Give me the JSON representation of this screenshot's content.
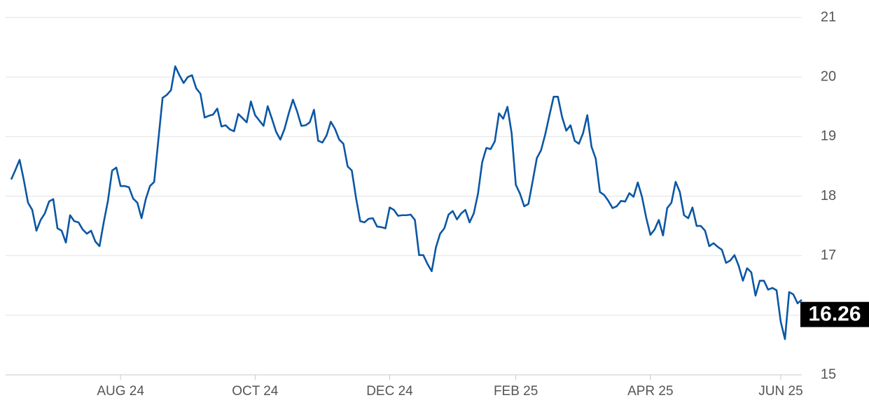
{
  "chart_data": {
    "type": "line",
    "categories": [
      null,
      null,
      null,
      null,
      null,
      null,
      null,
      null,
      null,
      null,
      null,
      null,
      null,
      null,
      null,
      null,
      null,
      null,
      null,
      null,
      null,
      null,
      null,
      null,
      null,
      null,
      "AUG 24",
      null,
      null,
      null,
      null,
      null,
      null,
      null,
      null,
      null,
      null,
      null,
      null,
      null,
      null,
      null,
      null,
      null,
      null,
      null,
      null,
      null,
      null,
      null,
      null,
      null,
      null,
      null,
      null,
      null,
      null,
      null,
      "OCT 24",
      null,
      null,
      null,
      null,
      null,
      null,
      null,
      null,
      null,
      null,
      null,
      null,
      null,
      null,
      null,
      null,
      null,
      null,
      null,
      null,
      null,
      null,
      null,
      null,
      null,
      null,
      null,
      null,
      null,
      null,
      null,
      "DEC 24",
      null,
      null,
      null,
      null,
      null,
      null,
      null,
      null,
      null,
      null,
      null,
      null,
      null,
      null,
      null,
      null,
      null,
      null,
      null,
      null,
      null,
      null,
      null,
      null,
      null,
      null,
      null,
      null,
      null,
      "FEB 25",
      null,
      null,
      null,
      null,
      null,
      null,
      null,
      null,
      null,
      null,
      null,
      null,
      null,
      null,
      null,
      null,
      null,
      null,
      null,
      null,
      null,
      null,
      null,
      null,
      null,
      null,
      null,
      null,
      null,
      null,
      null,
      "APR 25",
      null,
      null,
      null,
      null,
      null,
      null,
      null,
      null,
      null,
      null,
      null,
      null,
      null,
      null,
      null,
      null,
      null,
      null,
      null,
      null,
      null,
      null,
      null,
      null,
      null,
      null,
      null,
      null,
      null,
      null,
      "JUN 25",
      null,
      null,
      null,
      null,
      null
    ],
    "values": [
      18.28,
      18.44,
      18.61,
      18.27,
      17.89,
      17.77,
      17.42,
      17.6,
      17.71,
      17.91,
      17.95,
      17.46,
      17.42,
      17.22,
      17.68,
      17.58,
      17.56,
      17.44,
      17.37,
      17.42,
      17.24,
      17.16,
      17.56,
      17.92,
      18.43,
      18.48,
      18.17,
      18.17,
      18.15,
      17.96,
      17.89,
      17.63,
      17.95,
      18.17,
      18.24,
      18.95,
      19.65,
      19.7,
      19.78,
      20.18,
      20.03,
      19.9,
      20.0,
      20.03,
      19.81,
      19.72,
      19.32,
      19.35,
      19.37,
      19.47,
      19.17,
      19.19,
      19.12,
      19.09,
      19.38,
      19.31,
      19.24,
      19.59,
      19.36,
      19.27,
      19.18,
      19.51,
      19.3,
      19.08,
      18.95,
      19.13,
      19.39,
      19.62,
      19.42,
      19.18,
      19.19,
      19.24,
      19.45,
      18.93,
      18.9,
      19.02,
      19.25,
      19.13,
      18.95,
      18.88,
      18.5,
      18.43,
      17.97,
      17.58,
      17.56,
      17.62,
      17.63,
      17.49,
      17.48,
      17.46,
      17.81,
      17.77,
      17.67,
      17.68,
      17.68,
      17.69,
      17.6,
      17.01,
      17.01,
      16.86,
      16.74,
      17.14,
      17.37,
      17.46,
      17.69,
      17.75,
      17.61,
      17.71,
      17.77,
      17.56,
      17.71,
      18.04,
      18.57,
      18.81,
      18.79,
      18.92,
      19.39,
      19.3,
      19.5,
      19.06,
      18.19,
      18.04,
      17.83,
      17.87,
      18.25,
      18.64,
      18.77,
      19.04,
      19.36,
      19.67,
      19.67,
      19.33,
      19.1,
      19.19,
      18.93,
      18.88,
      19.06,
      19.36,
      18.83,
      18.63,
      18.07,
      18.02,
      17.92,
      17.8,
      17.83,
      17.92,
      17.91,
      18.05,
      17.99,
      18.23,
      17.99,
      17.64,
      17.35,
      17.44,
      17.6,
      17.34,
      17.8,
      17.89,
      18.24,
      18.07,
      17.68,
      17.63,
      17.81,
      17.5,
      17.5,
      17.42,
      17.16,
      17.21,
      17.15,
      17.1,
      16.88,
      16.92,
      17.01,
      16.83,
      16.58,
      16.79,
      16.72,
      16.33,
      16.58,
      16.58,
      16.43,
      16.46,
      16.42,
      15.89,
      15.6,
      16.39,
      16.35,
      16.2,
      16.26
    ],
    "color": "#0b57a4",
    "ylim": [
      15,
      21
    ],
    "yticks": [
      15,
      16,
      17,
      18,
      19,
      20,
      21
    ],
    "grid": true
  }
}
